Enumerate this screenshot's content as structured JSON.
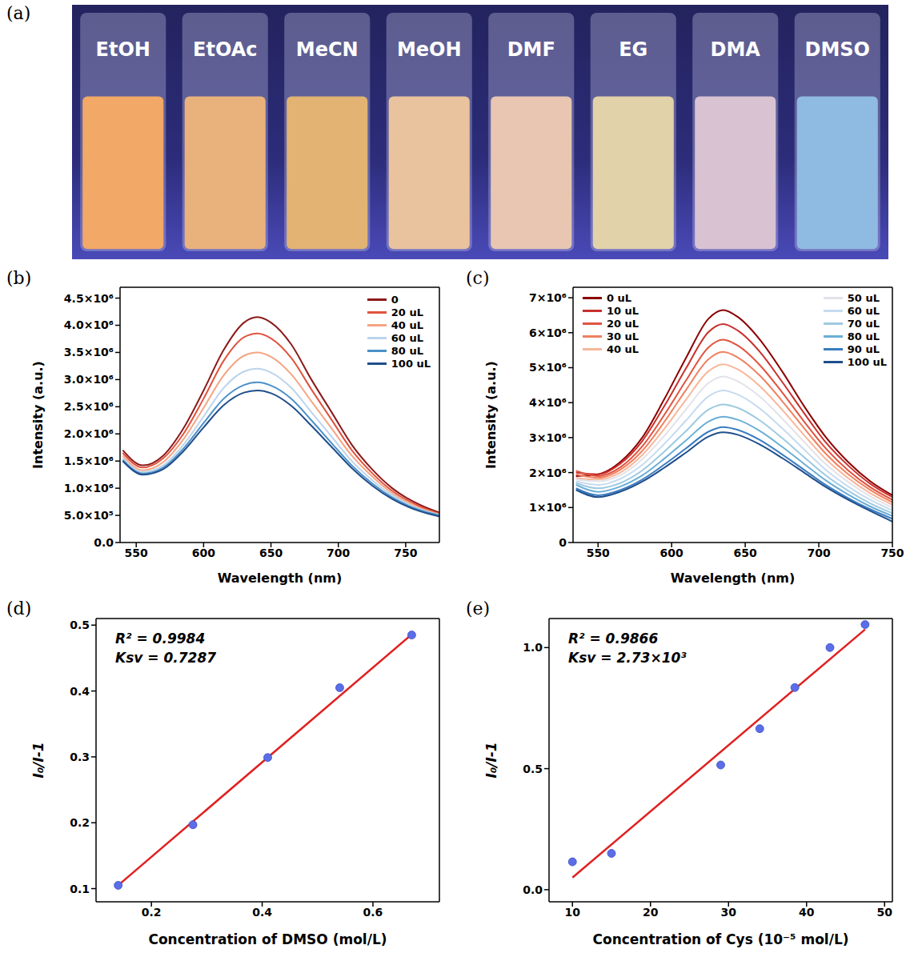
{
  "chart_data": [
    {
      "type": "photo",
      "label": "(a)",
      "categories": [
        "EtOH",
        "EtOAc",
        "MeCN",
        "MeOH",
        "DMF",
        "EG",
        "DMA",
        "DMSO"
      ],
      "colors": [
        "#f2a866",
        "#e9b27c",
        "#e2b372",
        "#e9c39e",
        "#e8c6b2",
        "#e2d2aa",
        "#d9c2d2",
        "#8fbbe2"
      ]
    },
    {
      "type": "line",
      "label": "(b)",
      "xlabel": "Wavelength (nm)",
      "ylabel": "Intensity (a.u.)",
      "x": [
        540,
        555,
        570,
        585,
        600,
        615,
        630,
        640,
        650,
        665,
        680,
        695,
        710,
        725,
        740,
        760,
        775
      ],
      "xlim": [
        538,
        775
      ],
      "xticks": [
        550,
        600,
        650,
        700,
        750
      ],
      "ylim": [
        0,
        4700000
      ],
      "yticks": [
        {
          "value": 0,
          "label": "0.0"
        },
        {
          "value": 500000,
          "label": "5.0×10⁵"
        },
        {
          "value": 1000000,
          "label": "1.0×10⁶"
        },
        {
          "value": 1500000,
          "label": "1.5×10⁶"
        },
        {
          "value": 2000000,
          "label": "2.0×10⁶"
        },
        {
          "value": 2500000,
          "label": "2.5×10⁶"
        },
        {
          "value": 3000000,
          "label": "3.0×10⁶"
        },
        {
          "value": 3500000,
          "label": "3.5×10⁶"
        },
        {
          "value": 4000000,
          "label": "4.0×10⁶"
        },
        {
          "value": 4500000,
          "label": "4.5×10⁶"
        }
      ],
      "legend": "upper right",
      "series": [
        {
          "name": "0",
          "color": "#8b1a1a",
          "values": [
            1700000.0,
            1420000.0,
            1600000.0,
            2100000.0,
            2800000.0,
            3550000.0,
            4050000.0,
            4150000.0,
            4050000.0,
            3650000.0,
            3000000.0,
            2400000.0,
            1800000.0,
            1350000.0,
            1000000.0,
            700000.0,
            550000.0
          ]
        },
        {
          "name": "20 uL",
          "color": "#e0533f",
          "values": [
            1650000.0,
            1380000.0,
            1550000.0,
            2000000.0,
            2650000.0,
            3350000.0,
            3780000.0,
            3850000.0,
            3760000.0,
            3400000.0,
            2820000.0,
            2260000.0,
            1700000.0,
            1280000.0,
            950000.0,
            670000.0,
            530000.0
          ]
        },
        {
          "name": "40 uL",
          "color": "#f4a582",
          "values": [
            1600000.0,
            1330000.0,
            1480000.0,
            1900000.0,
            2480000.0,
            3080000.0,
            3440000.0,
            3500000.0,
            3420000.0,
            3100000.0,
            2600000.0,
            2100000.0,
            1600000.0,
            1220000.0,
            910000.0,
            640000.0,
            520000.0
          ]
        },
        {
          "name": "60 uL",
          "color": "#bcd4ec",
          "values": [
            1550000.0,
            1300000.0,
            1420000.0,
            1800000.0,
            2320000.0,
            2850000.0,
            3150000.0,
            3200000.0,
            3130000.0,
            2850000.0,
            2400000.0,
            1950000.0,
            1500000.0,
            1150000.0,
            870000.0,
            620000.0,
            510000.0
          ]
        },
        {
          "name": "80 uL",
          "color": "#4a90c8",
          "values": [
            1520000.0,
            1270000.0,
            1380000.0,
            1730000.0,
            2200000.0,
            2650000.0,
            2900000.0,
            2950000.0,
            2890000.0,
            2650000.0,
            2250000.0,
            1830000.0,
            1420000.0,
            1090000.0,
            830000.0,
            600000.0,
            500000.0
          ]
        },
        {
          "name": "100 uL",
          "color": "#1f4e8c",
          "values": [
            1500000.0,
            1250000.0,
            1350000.0,
            1680000.0,
            2120000.0,
            2530000.0,
            2760000.0,
            2800000.0,
            2750000.0,
            2520000.0,
            2150000.0,
            1760000.0,
            1370000.0,
            1050000.0,
            800000.0,
            580000.0,
            480000.0
          ]
        }
      ]
    },
    {
      "type": "line",
      "label": "(c)",
      "xlabel": "Wavelength (nm)",
      "ylabel": "Intensity (a.u.)",
      "x": [
        535,
        550,
        565,
        580,
        595,
        610,
        625,
        635,
        645,
        660,
        675,
        690,
        705,
        720,
        735,
        750
      ],
      "xlim": [
        533,
        750
      ],
      "xticks": [
        550,
        600,
        650,
        700,
        750
      ],
      "ylim": [
        0,
        7300000
      ],
      "yticks": [
        0,
        {
          "value": 1000000,
          "label": "1×10⁶"
        },
        {
          "value": 2000000,
          "label": "2×10⁶"
        },
        {
          "value": 3000000,
          "label": "3×10⁶"
        },
        {
          "value": 4000000,
          "label": "4×10⁶"
        },
        {
          "value": 5000000,
          "label": "5×10⁶"
        },
        {
          "value": 6000000,
          "label": "6×10⁶"
        },
        {
          "value": 7000000,
          "label": "7×10⁶"
        }
      ],
      "legend": "top",
      "series": [
        {
          "name": "0 uL",
          "color": "#8b0000",
          "values": [
            1900000.0,
            1950000.0,
            2300000.0,
            3000000.0,
            4100000.0,
            5300000.0,
            6400000.0,
            6650000.0,
            6450000.0,
            5800000.0,
            4900000.0,
            3900000.0,
            3000000.0,
            2300000.0,
            1750000.0,
            1350000.0
          ]
        },
        {
          "name": "10 uL",
          "color": "#c8302c",
          "values": [
            2000000.0,
            1950000.0,
            2250000.0,
            2900000.0,
            3900000.0,
            5000000.0,
            6020000.0,
            6250000.0,
            6060000.0,
            5450000.0,
            4600000.0,
            3700000.0,
            2850000.0,
            2200000.0,
            1680000.0,
            1300000.0
          ]
        },
        {
          "name": "20 uL",
          "color": "#e0533f",
          "values": [
            2050000.0,
            1900000.0,
            2150000.0,
            2750000.0,
            3650000.0,
            4650000.0,
            5580000.0,
            5800000.0,
            5630000.0,
            5070000.0,
            4300000.0,
            3460000.0,
            2680000.0,
            2060000.0,
            1580000.0,
            1220000.0
          ]
        },
        {
          "name": "30 uL",
          "color": "#f08060",
          "values": [
            1950000.0,
            1850000.0,
            2080000.0,
            2620000.0,
            3450000.0,
            4380000.0,
            5240000.0,
            5450000.0,
            5290000.0,
            4770000.0,
            4050000.0,
            3270000.0,
            2530000.0,
            1950000.0,
            1500000.0,
            1150000.0
          ]
        },
        {
          "name": "40 uL",
          "color": "#f7b79a",
          "values": [
            1850000.0,
            1800000.0,
            2000000.0,
            2500000.0,
            3250000.0,
            4100000.0,
            4900000.0,
            5100000.0,
            4950000.0,
            4470000.0,
            3800000.0,
            3070000.0,
            2380000.0,
            1840000.0,
            1410000.0,
            1080000.0
          ]
        },
        {
          "name": "50 uL",
          "color": "#e2e2ea",
          "values": [
            1800000.0,
            1750000.0,
            1920000.0,
            2380000.0,
            3050000.0,
            3820000.0,
            4560000.0,
            4750000.0,
            4610000.0,
            4170000.0,
            3550000.0,
            2880000.0,
            2230000.0,
            1730000.0,
            1320000.0,
            1000000.0
          ]
        },
        {
          "name": "60 uL",
          "color": "#c6dbef",
          "values": [
            1750000.0,
            1650000.0,
            1820000.0,
            2220000.0,
            2820000.0,
            3500000.0,
            4180000.0,
            4350000.0,
            4230000.0,
            3830000.0,
            3270000.0,
            2660000.0,
            2070000.0,
            1600000.0,
            1220000.0,
            920000.0
          ]
        },
        {
          "name": "70 uL",
          "color": "#9ecae1",
          "values": [
            1700000.0,
            1550000.0,
            1700000.0,
            2060000.0,
            2600000.0,
            3200000.0,
            3800000.0,
            3950000.0,
            3850000.0,
            3490000.0,
            2990000.0,
            2440000.0,
            1910000.0,
            1480000.0,
            1120000.0,
            840000.0
          ]
        },
        {
          "name": "80 uL",
          "color": "#6baed6",
          "values": [
            1650000.0,
            1450000.0,
            1600000.0,
            1920000.0,
            2400000.0,
            2930000.0,
            3460000.0,
            3600000.0,
            3510000.0,
            3190000.0,
            2740000.0,
            2250000.0,
            1770000.0,
            1370000.0,
            1030000.0,
            760000.0
          ]
        },
        {
          "name": "90 uL",
          "color": "#3a7cc0",
          "values": [
            1550000.0,
            1350000.0,
            1500000.0,
            1800000.0,
            2230000.0,
            2700000.0,
            3170000.0,
            3300000.0,
            3220000.0,
            2930000.0,
            2520000.0,
            2080000.0,
            1640000.0,
            1270000.0,
            950000.0,
            680000.0
          ]
        },
        {
          "name": "100 uL",
          "color": "#1f4e8c",
          "values": [
            1500000.0,
            1300000.0,
            1450000.0,
            1740000.0,
            2140000.0,
            2580000.0,
            3030000.0,
            3150000.0,
            3080000.0,
            2800000.0,
            2420000.0,
            2000000.0,
            1580000.0,
            1220000.0,
            900000.0,
            600000.0
          ]
        }
      ]
    },
    {
      "type": "scatter",
      "label": "(d)",
      "xlabel": "Concentration of DMSO (mol/L)",
      "ylabel": "I₀/I-1",
      "annotations": [
        "R² = 0.9984",
        "Ksv = 0.7287"
      ],
      "x": [
        0.14,
        0.275,
        0.41,
        0.54,
        0.67
      ],
      "values": [
        0.105,
        0.197,
        0.299,
        0.405,
        0.485
      ],
      "color": "#5b6ee8",
      "marker": "circle",
      "fit": {
        "x": [
          0.14,
          0.67
        ],
        "values": [
          0.105,
          0.486
        ],
        "color": "#e02020"
      },
      "xlim": [
        0.1,
        0.72
      ],
      "xticks": [
        0.2,
        0.4,
        0.6
      ],
      "ylim": [
        0.08,
        0.51
      ],
      "yticks": [
        0.1,
        0.2,
        0.3,
        0.4,
        0.5
      ]
    },
    {
      "type": "scatter",
      "label": "(e)",
      "xlabel": "Concentration of Cys (10⁻⁵ mol/L)",
      "ylabel": "I₀/I-1",
      "annotations": [
        "R² = 0.9866",
        "Ksv = 2.73×10³"
      ],
      "x": [
        10,
        15,
        29,
        34,
        38.5,
        43,
        47.5
      ],
      "values": [
        0.115,
        0.15,
        0.515,
        0.665,
        0.835,
        1.0,
        1.095
      ],
      "color": "#5b6ee8",
      "marker": "circle",
      "fit": {
        "x": [
          10,
          47.5
        ],
        "values": [
          0.05,
          1.075
        ],
        "color": "#e02020"
      },
      "xlim": [
        7,
        51
      ],
      "xticks": [
        10,
        20,
        30,
        40,
        50
      ],
      "ylim": [
        -0.05,
        1.12
      ],
      "yticks": [
        {
          "value": 0,
          "label": "0.0"
        },
        {
          "value": 0.5,
          "label": "0.5"
        },
        {
          "value": 1,
          "label": "1.0"
        }
      ]
    }
  ]
}
